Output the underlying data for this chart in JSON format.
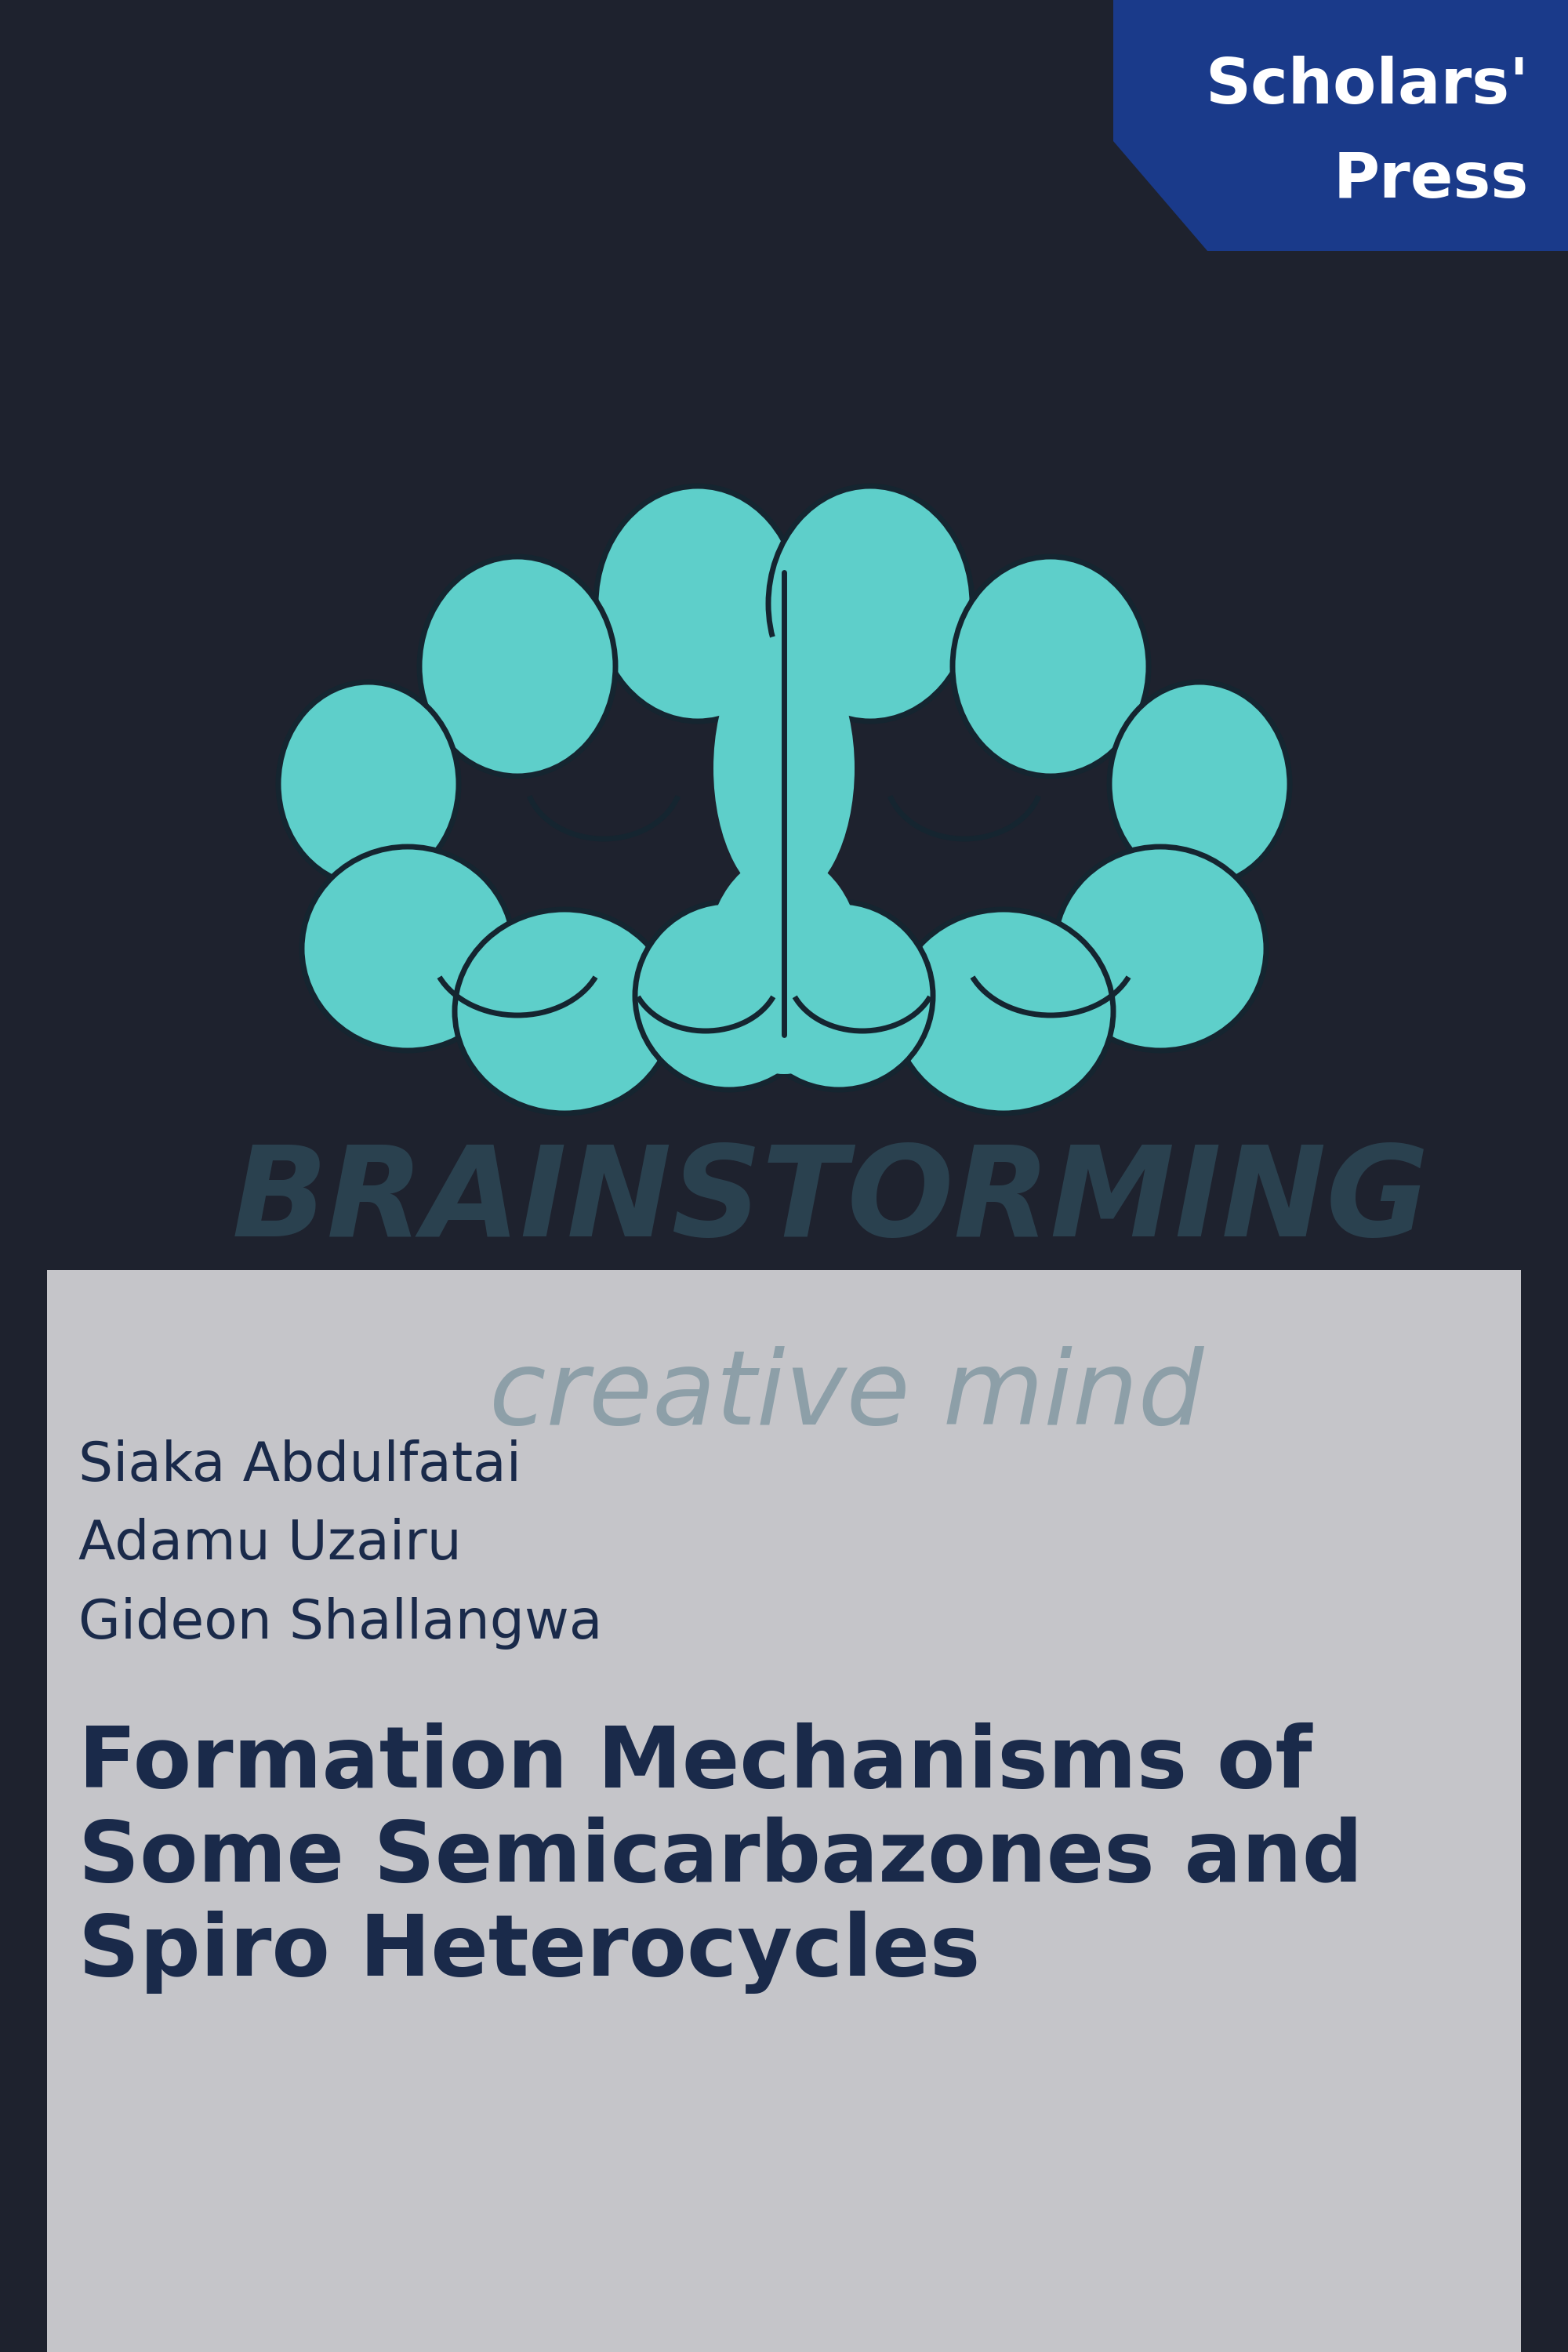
{
  "bg_color": "#1e222e",
  "brain_color": "#5ecfca",
  "brain_outline_color": "#152530",
  "scholars_press_bg": "#1a3a8a",
  "scholars_press_text": "#ffffff",
  "scholars_press_line1": "Scholars'",
  "scholars_press_line2": "Press",
  "brainstorming_text": "BRAINSTORMING",
  "brainstorming_color": "#4a8a9a",
  "creative_mind_text": "creative mind",
  "creative_mind_color": "#4a8a9a",
  "bottom_panel_color": "#c5c5c9",
  "author1": "Siaka Abdulfatai",
  "author2": "Adamu Uzairu",
  "author3": "Gideon Shallangwa",
  "authors_color": "#1a2a4a",
  "title_line1": "Formation Mechanisms of",
  "title_line2": "Some Semicarbazones and",
  "title_line3": "Spiro Heterocycles",
  "title_color": "#1a2a4a",
  "fig_width": 20.0,
  "fig_height": 30.0
}
